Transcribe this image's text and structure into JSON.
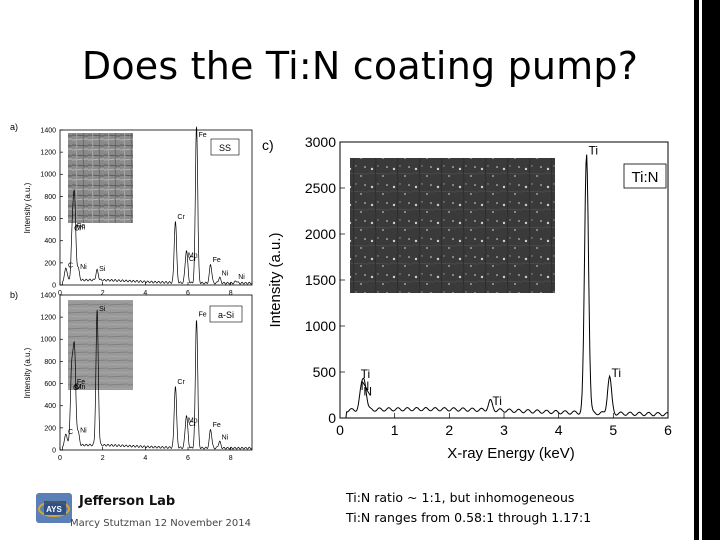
{
  "slide": {
    "title": "Does the Ti:N coating pump?",
    "footer": "Marcy Stutzman 12 November 2014",
    "logo_text": "Jefferson Lab",
    "logo_mark": "JLab logo",
    "notes": [
      "Ti:N ratio ~ 1:1, but inhomogeneous",
      "Ti:N ranges from 0.58:1 through 1.17:1"
    ]
  },
  "chart_data": [
    {
      "panel": "a)",
      "type": "line",
      "sample_label": "SS",
      "ylabel": "Intensity (a.u.)",
      "xlim": [
        0,
        9
      ],
      "ylim": [
        0,
        1400
      ],
      "x_ticks": [
        "0",
        "2",
        "4",
        "6",
        "8"
      ],
      "y_ticks": [
        "0",
        "200",
        "400",
        "600",
        "800",
        "1000",
        "1200",
        "1400"
      ],
      "peaks": [
        {
          "label": "Fe",
          "x": 0.7,
          "y": 480
        },
        {
          "label": "Mn",
          "x": 0.64,
          "y": 400
        },
        {
          "label": "Cr",
          "x": 0.57,
          "y": 330
        },
        {
          "label": "C",
          "x": 0.28,
          "y": 120
        },
        {
          "label": "Ni",
          "x": 0.85,
          "y": 110
        },
        {
          "label": "Si",
          "x": 1.74,
          "y": 90
        },
        {
          "label": "Cr",
          "x": 5.41,
          "y": 560
        },
        {
          "label": "Cr",
          "x": 5.95,
          "y": 180
        },
        {
          "label": "Mn",
          "x": 5.9,
          "y": 150
        },
        {
          "label": "Fe",
          "x": 6.4,
          "y": 1430
        },
        {
          "label": "Fe",
          "x": 7.06,
          "y": 170
        },
        {
          "label": "Ni",
          "x": 7.48,
          "y": 50
        },
        {
          "label": "Ni",
          "x": 8.26,
          "y": 20
        }
      ]
    },
    {
      "panel": "b)",
      "type": "line",
      "sample_label": "a-Si",
      "ylabel": "Intensity (a.u.)",
      "xlim": [
        0,
        9
      ],
      "ylim": [
        0,
        1400
      ],
      "x_ticks": [
        "0",
        "2",
        "4",
        "6",
        "8"
      ],
      "y_ticks": [
        "0",
        "200",
        "400",
        "600",
        "800",
        "1000",
        "1200",
        "1400"
      ],
      "peaks": [
        {
          "label": "Fe",
          "x": 0.7,
          "y": 560
        },
        {
          "label": "Mn",
          "x": 0.64,
          "y": 450
        },
        {
          "label": "O",
          "x": 0.52,
          "y": 380
        },
        {
          "label": "Cr",
          "x": 0.57,
          "y": 330
        },
        {
          "label": "C",
          "x": 0.28,
          "y": 110
        },
        {
          "label": "Ni",
          "x": 0.85,
          "y": 120
        },
        {
          "label": "Si",
          "x": 1.74,
          "y": 1220
        },
        {
          "label": "Cr",
          "x": 5.41,
          "y": 560
        },
        {
          "label": "Cr",
          "x": 5.95,
          "y": 180
        },
        {
          "label": "Mn",
          "x": 5.9,
          "y": 150
        },
        {
          "label": "Fe",
          "x": 6.4,
          "y": 1170
        },
        {
          "label": "Fe",
          "x": 7.06,
          "y": 170
        },
        {
          "label": "Ni",
          "x": 7.48,
          "y": 60
        }
      ]
    },
    {
      "panel": "c)",
      "type": "line",
      "sample_label": "Ti:N",
      "xlabel": "X-ray Energy (keV)",
      "ylabel": "Intensity (a.u.)",
      "xlim": [
        0,
        6
      ],
      "ylim": [
        0,
        3000
      ],
      "x_ticks": [
        "0",
        "1",
        "2",
        "3",
        "4",
        "5",
        "6"
      ],
      "y_ticks": [
        "0",
        "500",
        "1000",
        "1500",
        "2000",
        "2500",
        "3000"
      ],
      "peaks": [
        {
          "label": "Ti",
          "x": 0.45,
          "y": 280,
          "annot": "Ti\nN"
        },
        {
          "label": "N",
          "x": 0.39,
          "y": 200
        },
        {
          "label": "Ti",
          "x": 2.75,
          "y": 100
        },
        {
          "label": "Ti",
          "x": 4.51,
          "y": 2820
        },
        {
          "label": "Ti",
          "x": 4.93,
          "y": 400
        }
      ]
    }
  ]
}
